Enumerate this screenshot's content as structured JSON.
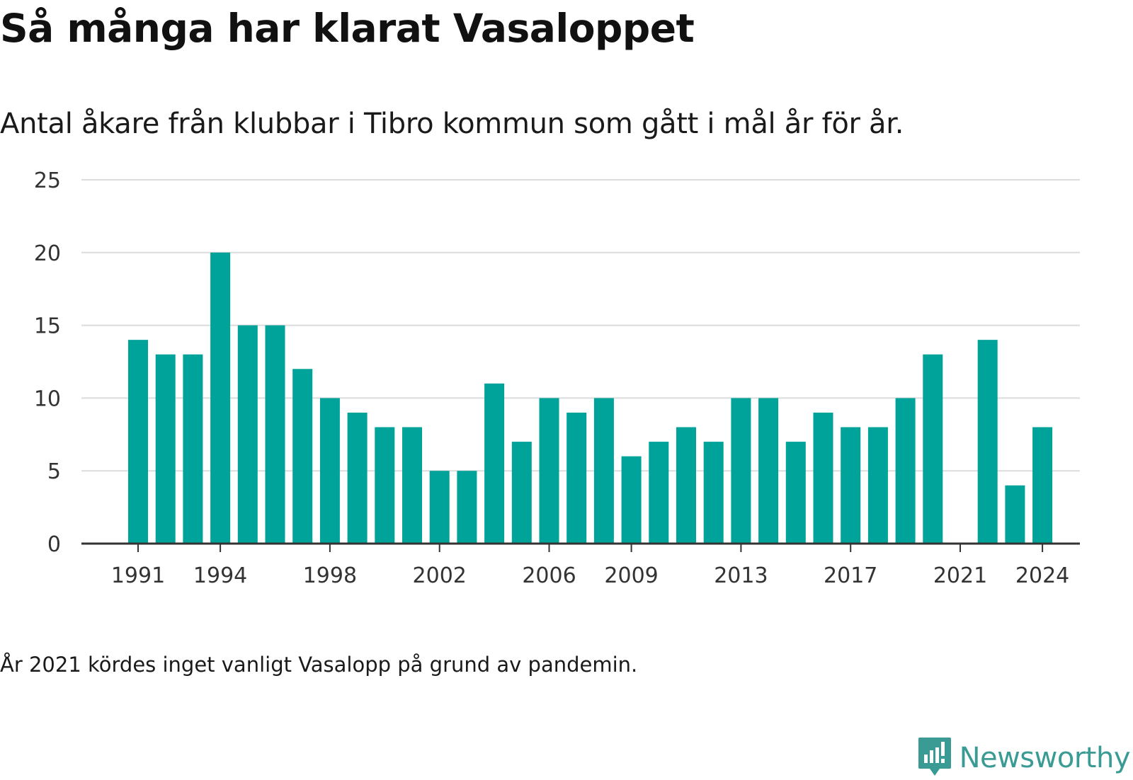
{
  "title": "Så många har klarat Vasaloppet",
  "subtitle": "Antal åkare från klubbar i Tibro kommun som gått i mål år för år.",
  "footnote": "År 2021 kördes inget vanligt Vasalopp på grund av pandemin.",
  "brand": {
    "name": "Newsworthy",
    "icon": "newsworthy-logo-icon",
    "color": "#3a9b95"
  },
  "colors": {
    "bar": "#00a39a",
    "grid": "#dcdcdc",
    "axis": "#333333"
  },
  "chart_data": {
    "type": "bar",
    "categories": [
      "1991",
      "1992",
      "1993",
      "1994",
      "1995",
      "1996",
      "1997",
      "1998",
      "1999",
      "2000",
      "2001",
      "2002",
      "2003",
      "2004",
      "2005",
      "2006",
      "2007",
      "2008",
      "2009",
      "2010",
      "2011",
      "2012",
      "2013",
      "2014",
      "2015",
      "2016",
      "2017",
      "2018",
      "2019",
      "2020",
      "2021",
      "2022",
      "2023",
      "2024"
    ],
    "values": [
      14,
      13,
      13,
      20,
      15,
      15,
      12,
      10,
      9,
      8,
      8,
      5,
      5,
      11,
      7,
      10,
      9,
      10,
      6,
      7,
      8,
      7,
      10,
      10,
      7,
      9,
      8,
      8,
      10,
      13,
      null,
      14,
      4,
      8
    ],
    "xtick_labels": [
      "1991",
      "1994",
      "1998",
      "2002",
      "2006",
      "2009",
      "2013",
      "2017",
      "2021",
      "2024"
    ],
    "yticks": [
      0,
      5,
      10,
      15,
      20,
      25
    ],
    "ylim": [
      0,
      25
    ],
    "grid": true,
    "legend": "none"
  }
}
